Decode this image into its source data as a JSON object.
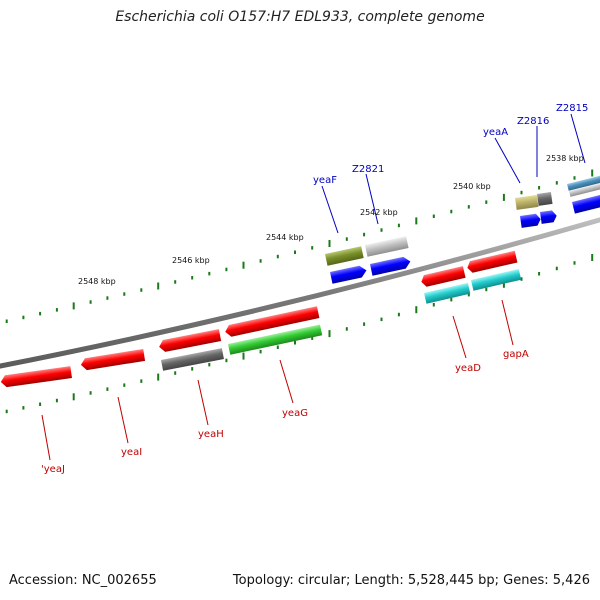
{
  "title": "Escherichia coli O157:H7 EDL933, complete genome",
  "accession": "Accession: NC_002655",
  "genome_stats": "Topology: circular; Length: 5,528,445 bp; Genes: 5,426",
  "colors": {
    "backbone": "#8a8a8a",
    "tick": "#1a7a1a",
    "label_forward": "#0000c0",
    "label_reverse": "#c00000"
  },
  "scale_labels": [
    "2538 kbp",
    "2540 kbp",
    "2542 kbp",
    "2544 kbp",
    "2546 kbp",
    "2548 kbp"
  ],
  "gene_labels_forward": [
    "Z2815",
    "Z2816",
    "yeaA",
    "Z2821",
    "yeaF"
  ],
  "gene_labels_reverse": [
    "gapA",
    "yeaD",
    "yeaG",
    "yeaH",
    "yeaI",
    "'yeaJ"
  ]
}
